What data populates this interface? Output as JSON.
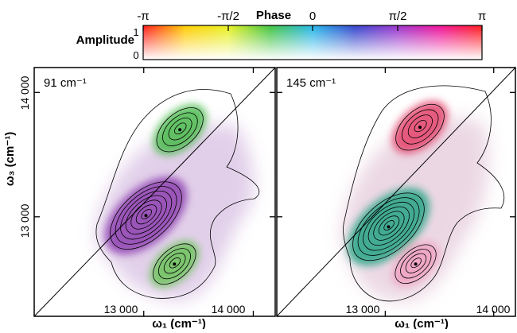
{
  "colorbar": {
    "phase_label": "Phase",
    "amplitude_label": "Amplitude",
    "phase_ticks": [
      "-π",
      "-π/2",
      "0",
      "π/2",
      "π"
    ],
    "amplitude_ticks": [
      "1",
      "0"
    ],
    "hue_stops": [
      "#ff1a1a",
      "#ffcc00",
      "#e8f020",
      "#3ec33e",
      "#22b5e8",
      "#3344cc",
      "#9933cc",
      "#ee1199",
      "#ff1a1a"
    ]
  },
  "chart_data": [
    {
      "type": "heatmap",
      "id": "panel_a",
      "annotation": "91 cm⁻¹",
      "xlabel": "ω₁ (cm⁻¹)",
      "ylabel": "ω₃ (cm⁻¹)",
      "xlim": [
        12000,
        14200
      ],
      "ylim": [
        12200,
        14200
      ],
      "x_ticks": [
        13000,
        14000
      ],
      "x_tick_labels": [
        "13 000",
        "14 000"
      ],
      "y_ticks": [
        13000,
        14000
      ],
      "y_tick_labels": [
        "13 000",
        "14 000"
      ],
      "diagonal": true,
      "features": [
        {
          "name": "lower-diagonal peak",
          "x": 13020,
          "y": 13010,
          "phase": "purple-magenta",
          "color": "#8e3fb0",
          "amplitude": 1.0
        },
        {
          "name": "upper cross peak",
          "x": 13330,
          "y": 13700,
          "phase": "green",
          "color": "#49b94c",
          "amplitude": 0.6
        },
        {
          "name": "lower cross peak",
          "x": 13280,
          "y": 12620,
          "phase": "green",
          "color": "#6cc45a",
          "amplitude": 0.4
        }
      ]
    },
    {
      "type": "heatmap",
      "id": "panel_b",
      "annotation": "145 cm⁻¹",
      "xlabel": "ω₁ (cm⁻¹)",
      "ylabel": "",
      "xlim": [
        12000,
        14200
      ],
      "ylim": [
        12200,
        14200
      ],
      "x_ticks": [
        13000,
        14000
      ],
      "x_tick_labels": [
        "13 000",
        "14 000"
      ],
      "y_ticks": [
        13000,
        14000
      ],
      "y_tick_labels": [
        "",
        ""
      ],
      "diagonal": true,
      "features": [
        {
          "name": "lower-diagonal peak",
          "x": 13030,
          "y": 12920,
          "phase": "teal-green",
          "color": "#25a486",
          "amplitude": 1.0
        },
        {
          "name": "upper cross peak",
          "x": 13320,
          "y": 13720,
          "phase": "red-magenta",
          "color": "#e3426a",
          "amplitude": 0.7
        },
        {
          "name": "lower cross peak",
          "x": 13280,
          "y": 12620,
          "phase": "pink",
          "color": "#f0a0c0",
          "amplitude": 0.3
        }
      ]
    }
  ]
}
